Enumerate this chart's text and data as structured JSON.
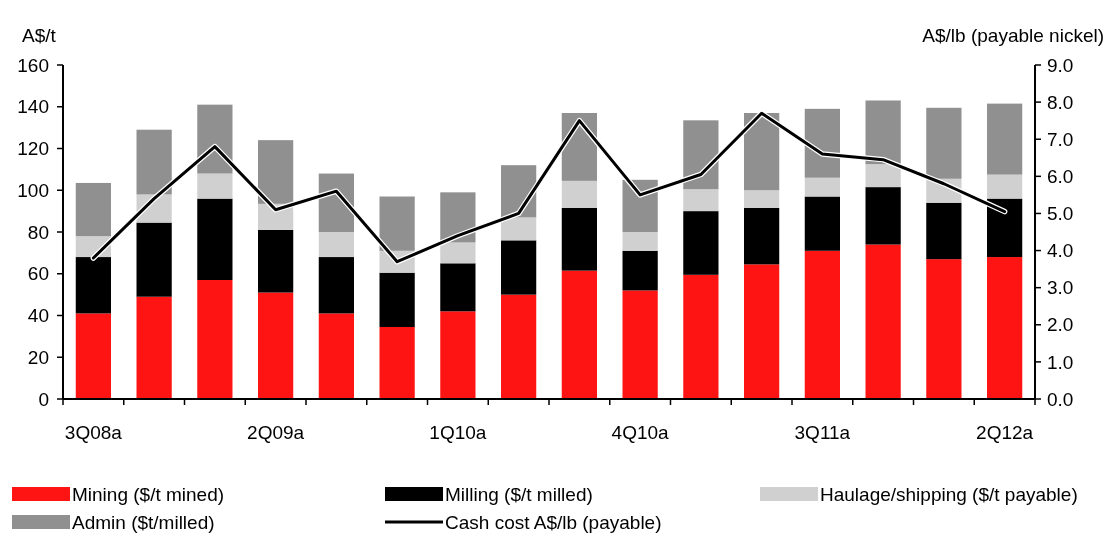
{
  "chart_data": {
    "type": "bar",
    "stacked": true,
    "ylabel": "A$/t",
    "y2label": "A$/lb (payable nickel)",
    "categories": [
      "3Q08a",
      null,
      null,
      "2Q09a",
      null,
      null,
      "1Q10a",
      null,
      null,
      "4Q10a",
      null,
      null,
      "3Q11a",
      null,
      null,
      "2Q12a"
    ],
    "series": [
      {
        "name": "Mining ($/t mined)",
        "color": "#ff1414",
        "values": [
          41,
          49,
          57,
          51,
          41,
          34.5,
          42,
          50,
          61.5,
          52,
          59.5,
          64.5,
          71,
          74,
          67,
          68
        ]
      },
      {
        "name": "Milling ($/t milled)",
        "color": "#000000",
        "values": [
          27,
          35.5,
          39,
          30,
          27,
          26,
          23,
          26,
          30,
          19,
          30.5,
          27,
          26,
          27.5,
          27,
          28
        ]
      },
      {
        "name": "Haulage/shipping ($/t payable)",
        "color": "#d0d0d0",
        "values": [
          10,
          13.5,
          12,
          12.5,
          12,
          10.5,
          10,
          11,
          13,
          9,
          10.5,
          8.5,
          9,
          11,
          11.5,
          11.5
        ]
      },
      {
        "name": "Admin ($t/milled)",
        "color": "#909090",
        "values": [
          25.5,
          31,
          33,
          30.5,
          28,
          26,
          24,
          25,
          32.5,
          25,
          33,
          37,
          33,
          30.5,
          34,
          34
        ]
      },
      {
        "name": "Cash cost A$/lb (payable)",
        "type": "line",
        "axis": "y2",
        "color": "#000000",
        "values": [
          3.8,
          5.4,
          6.8,
          5.1,
          5.6,
          3.7,
          4.4,
          5.0,
          7.5,
          5.5,
          6.05,
          7.7,
          6.6,
          6.45,
          5.8,
          5.05
        ]
      }
    ],
    "ylim": [
      0,
      160
    ],
    "yticks": [
      0,
      20,
      40,
      60,
      80,
      100,
      120,
      140,
      160
    ],
    "y2lim": [
      0,
      9
    ],
    "y2ticks": [
      {
        "value": 0,
        "label": "0.0"
      },
      {
        "value": 1,
        "label": "1.0"
      },
      {
        "value": 2,
        "label": "2.0"
      },
      {
        "value": 3,
        "label": "3.0"
      },
      {
        "value": 4,
        "label": "4.0"
      },
      {
        "value": 5,
        "label": "5.0"
      },
      {
        "value": 6,
        "label": "6.0"
      },
      {
        "value": 7,
        "label": "7.0"
      },
      {
        "value": 8,
        "label": "8.0"
      },
      {
        "value": 9,
        "label": "9.0"
      }
    ],
    "legend": "bottom",
    "grid": false,
    "marker": "none",
    "line_style": "solid"
  }
}
